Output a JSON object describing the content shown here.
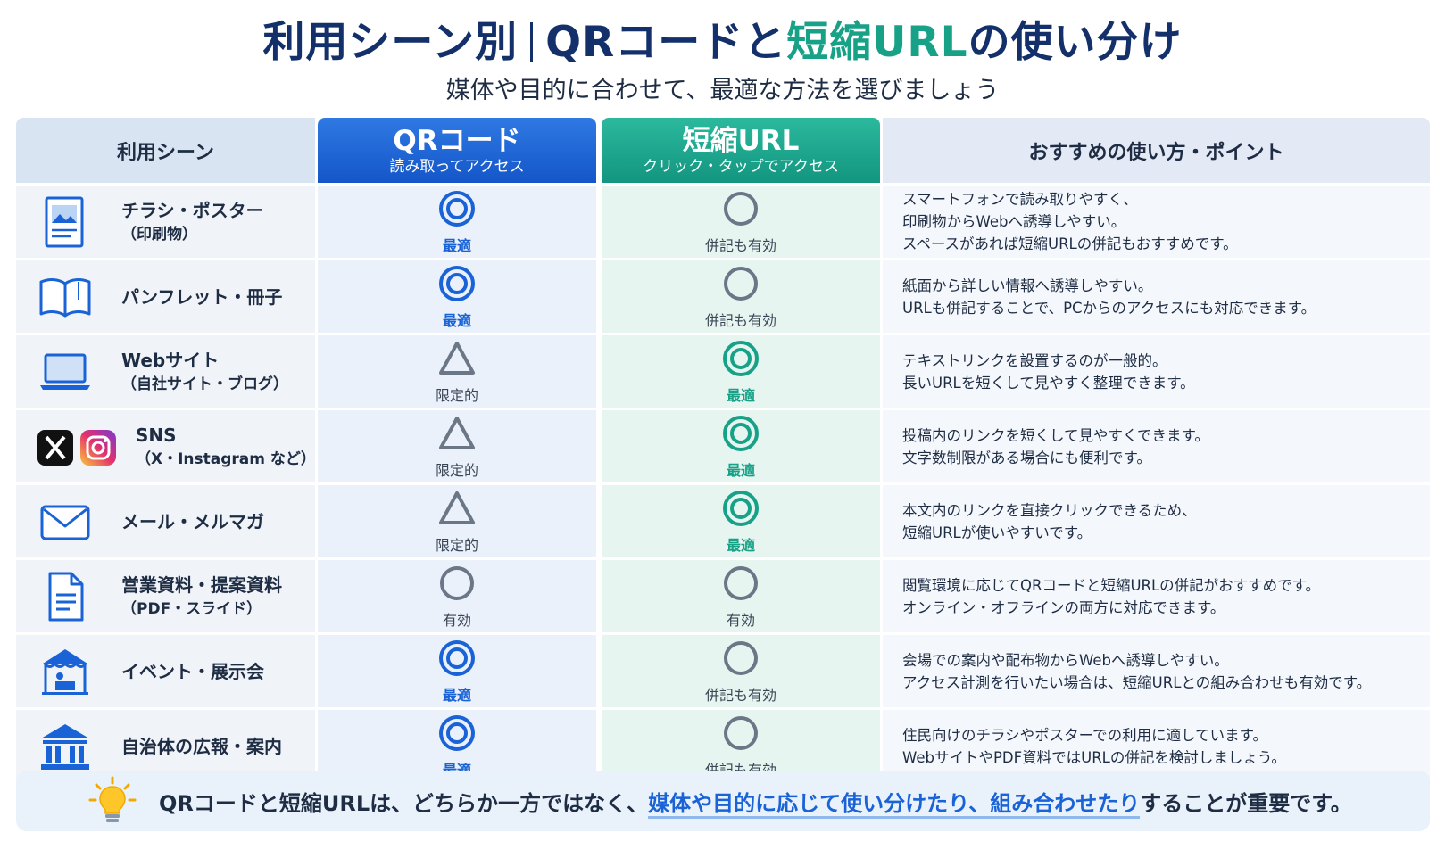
{
  "title": {
    "part1": "利用シーン別",
    "part2": "QRコードと",
    "accent": "短縮URL",
    "part3": "の使い分け"
  },
  "subtitle": "媒体や目的に合わせて、最適な方法を選びましょう",
  "colors": {
    "qr": "#1a63d6",
    "url": "#17a288",
    "gray": "#6b7787",
    "navy": "#13306b"
  },
  "header": {
    "scene": "利用シーン",
    "qr_main": "QRコード",
    "qr_sub": "読み取ってアクセス",
    "url_main": "短縮URL",
    "url_sub": "クリック・タップでアクセス",
    "point": "おすすめの使い方・ポイント"
  },
  "rows": [
    {
      "icon": "flyer-icon",
      "main": "チラシ・ポスター",
      "sub": "（印刷物）",
      "qr": {
        "mark": "double-circle",
        "label": "最適"
      },
      "url": {
        "mark": "circle",
        "label": "併記も有効"
      },
      "points": [
        "スマートフォンで読み取りやすく、",
        "印刷物からWebへ誘導しやすい。",
        "スペースがあれば短縮URLの併記もおすすめです。"
      ]
    },
    {
      "icon": "book-icon",
      "main": "パンフレット・冊子",
      "sub": "",
      "qr": {
        "mark": "double-circle",
        "label": "最適"
      },
      "url": {
        "mark": "circle",
        "label": "併記も有効"
      },
      "points": [
        "紙面から詳しい情報へ誘導しやすい。",
        "URLも併記することで、PCからのアクセスにも対応できます。"
      ]
    },
    {
      "icon": "laptop-icon",
      "main": "Webサイト",
      "sub": "（自社サイト・ブログ）",
      "qr": {
        "mark": "triangle",
        "label": "限定的"
      },
      "url": {
        "mark": "double-circle",
        "label": "最適"
      },
      "points": [
        "テキストリンクを設置するのが一般的。",
        "長いURLを短くして見やすく整理できます。"
      ]
    },
    {
      "icon": "sns-icon",
      "main": "SNS",
      "sub": "（X・Instagram など）",
      "qr": {
        "mark": "triangle",
        "label": "限定的"
      },
      "url": {
        "mark": "double-circle",
        "label": "最適"
      },
      "points": [
        "投稿内のリンクを短くして見やすくできます。",
        "文字数制限がある場合にも便利です。"
      ]
    },
    {
      "icon": "mail-icon",
      "main": "メール・メルマガ",
      "sub": "",
      "qr": {
        "mark": "triangle",
        "label": "限定的"
      },
      "url": {
        "mark": "double-circle",
        "label": "最適"
      },
      "points": [
        "本文内のリンクを直接クリックできるため、",
        "短縮URLが使いやすいです。"
      ]
    },
    {
      "icon": "document-icon",
      "main": "営業資料・提案資料",
      "sub": "（PDF・スライド）",
      "qr": {
        "mark": "circle",
        "label": "有効"
      },
      "url": {
        "mark": "circle",
        "label": "有効"
      },
      "points": [
        "閲覧環境に応じてQRコードと短縮URLの併記がおすすめです。",
        "オンライン・オフラインの両方に対応できます。"
      ]
    },
    {
      "icon": "event-booth-icon",
      "main": "イベント・展示会",
      "sub": "",
      "qr": {
        "mark": "double-circle",
        "label": "最適"
      },
      "url": {
        "mark": "circle",
        "label": "併記も有効"
      },
      "points": [
        "会場での案内や配布物からWebへ誘導しやすい。",
        "アクセス計測を行いたい場合は、短縮URLとの組み合わせも有効です。"
      ]
    },
    {
      "icon": "city-hall-icon",
      "main": "自治体の広報・案内",
      "sub": "",
      "qr": {
        "mark": "double-circle",
        "label": "最適"
      },
      "url": {
        "mark": "circle",
        "label": "併記も有効"
      },
      "points": [
        "住民向けのチラシやポスターでの利用に適しています。",
        "WebサイトやPDF資料ではURLの併記を検討しましょう。"
      ]
    }
  ],
  "footer": {
    "icon": "lightbulb-icon",
    "before": "QRコードと短縮URLは、どちらか一方ではなく、",
    "highlight": "媒体や目的に応じて使い分けたり、組み合わせたり",
    "after": "することが重要です。"
  }
}
